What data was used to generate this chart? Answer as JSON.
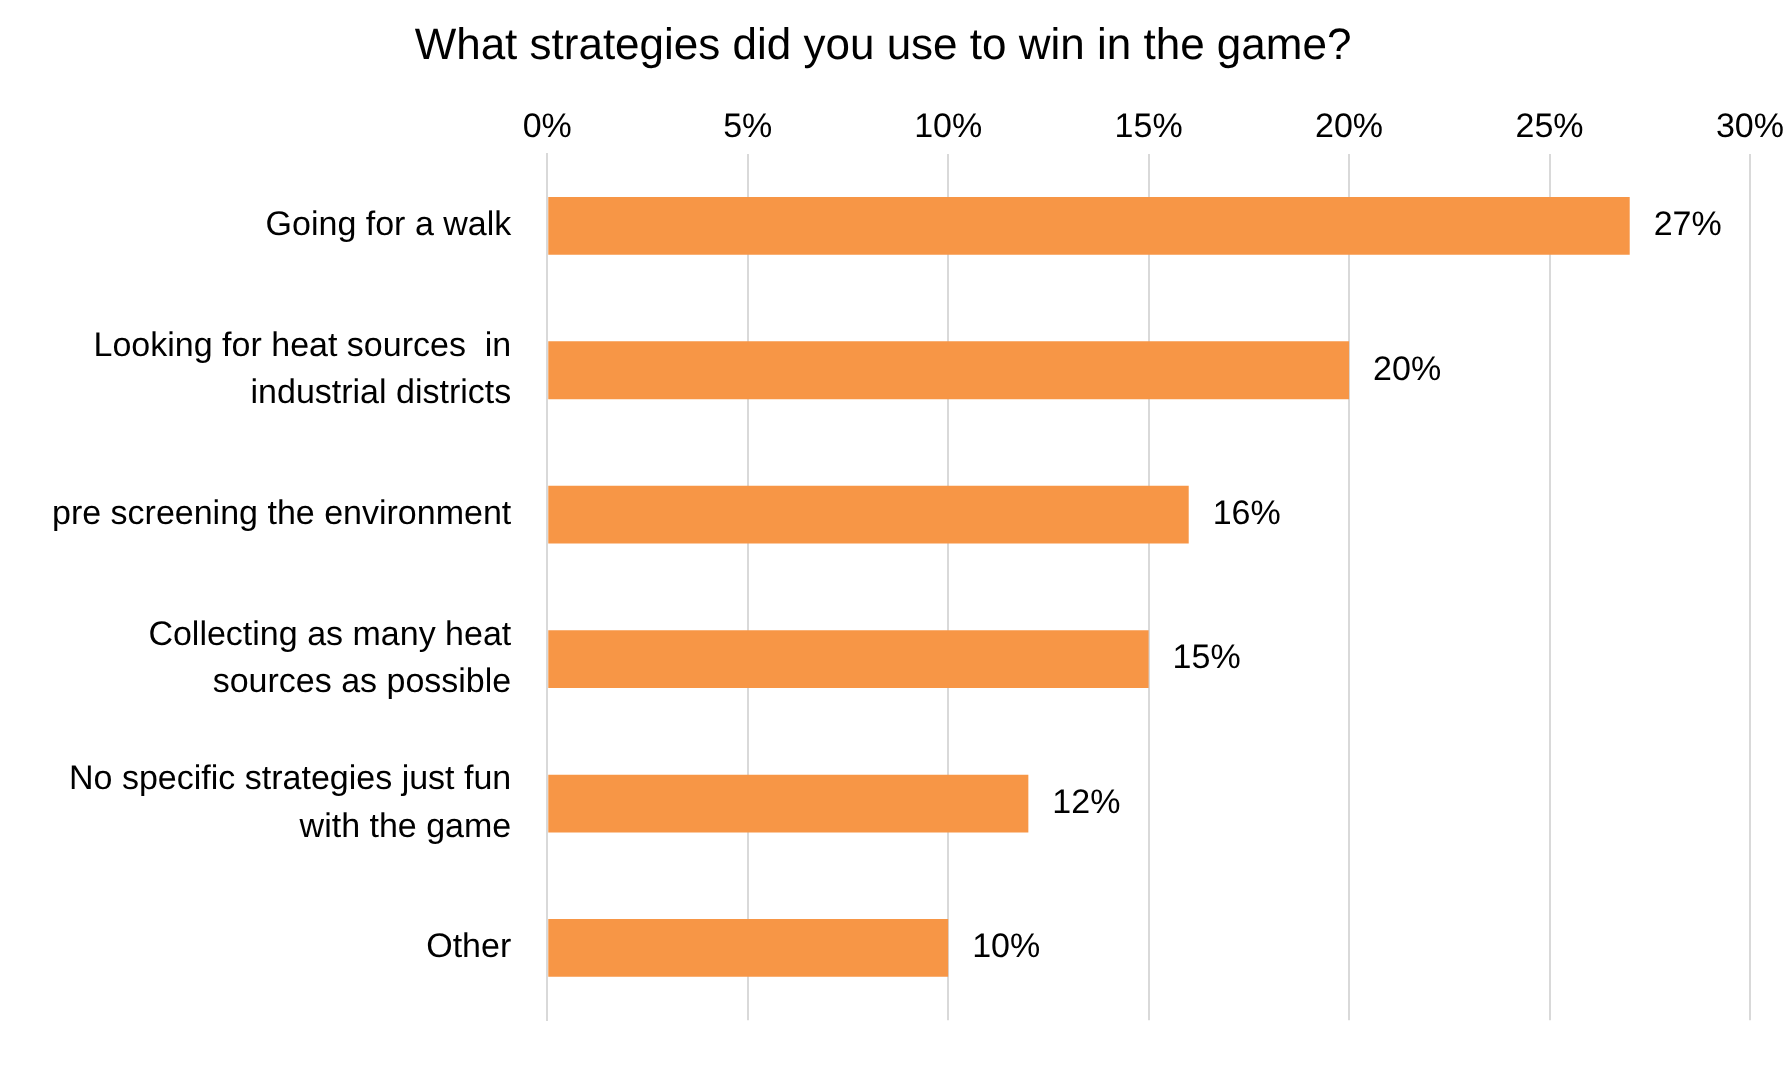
{
  "chart_data": {
    "type": "bar",
    "orientation": "horizontal",
    "title": "What strategies did you use to win in the game?",
    "categories": [
      "Going for a walk",
      "Looking for heat sources  in industrial districts",
      "pre screening the environment",
      "Collecting as many heat sources as possible",
      "No specific strategies just fun with the game",
      "Other"
    ],
    "values": [
      27,
      20,
      16,
      15,
      12,
      10
    ],
    "value_labels": [
      "27%",
      "20%",
      "16%",
      "15%",
      "12%",
      "10%"
    ],
    "color": "#f79646",
    "xlim": [
      0,
      30
    ],
    "xticks": [
      {
        "value": 0,
        "label": "0%"
      },
      {
        "value": 5,
        "label": "5%"
      },
      {
        "value": 10,
        "label": "10%"
      },
      {
        "value": 15,
        "label": "15%"
      },
      {
        "value": 20,
        "label": "20%"
      },
      {
        "value": 25,
        "label": "25%"
      },
      {
        "value": 30,
        "label": "30%"
      }
    ],
    "grid": "x",
    "legend": false
  }
}
